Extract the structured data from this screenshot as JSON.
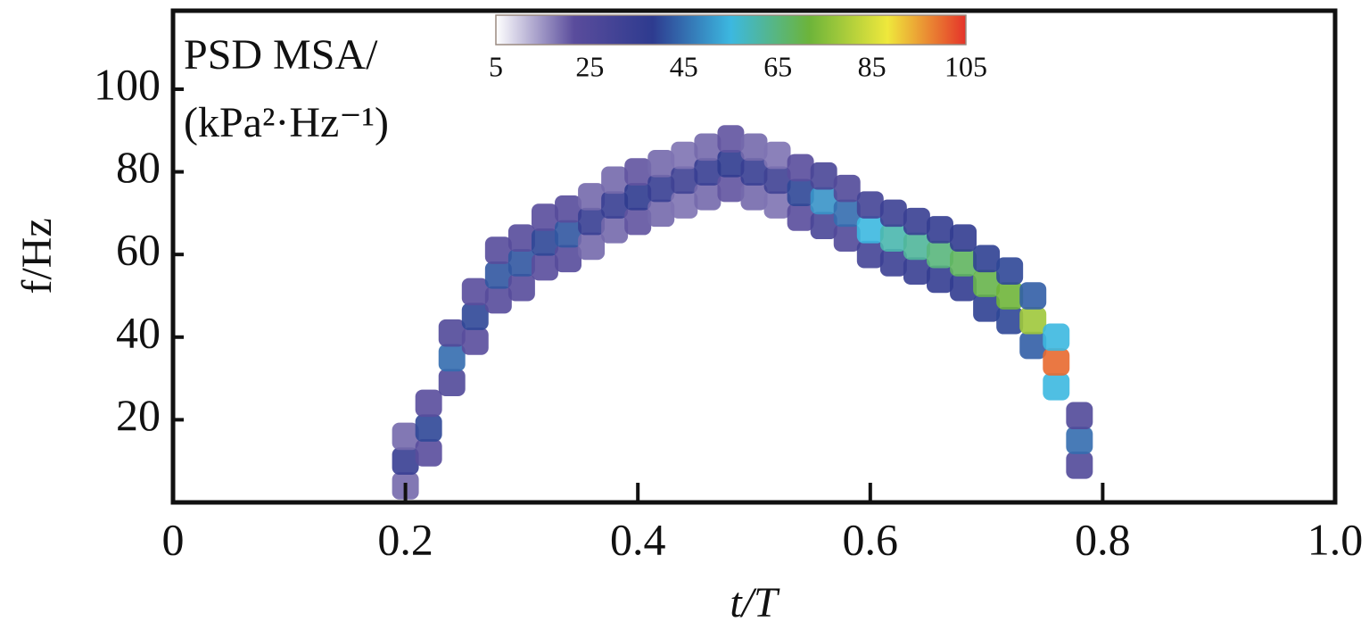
{
  "chart_data": {
    "type": "heatmap",
    "colorbar_title": [
      "PSD MSA/",
      "(kPa²·Hz⁻¹)"
    ],
    "xlabel": "t/T",
    "ylabel": "f/Hz",
    "xlim": [
      0,
      1
    ],
    "ylim": [
      0,
      119
    ],
    "xticks": [
      0,
      0.2,
      0.4,
      0.6,
      0.8,
      {
        "value": 1,
        "label": "1.0"
      }
    ],
    "yticks": [
      20,
      40,
      60,
      80,
      100
    ],
    "zlim": [
      5,
      105
    ],
    "zticks": [
      5,
      25,
      45,
      65,
      85,
      105
    ],
    "colorscale": [
      "#ffffff",
      "#5a4c9c",
      "#2e3b8f",
      "#3cb8e0",
      "#6cb43a",
      "#efe83c",
      "#e5332a"
    ],
    "x": [
      0.2,
      0.2,
      0.2,
      0.22,
      0.22,
      0.22,
      0.24,
      0.24,
      0.24,
      0.26,
      0.26,
      0.26,
      0.28,
      0.28,
      0.28,
      0.3,
      0.3,
      0.3,
      0.32,
      0.32,
      0.32,
      0.34,
      0.34,
      0.34,
      0.36,
      0.36,
      0.36,
      0.38,
      0.38,
      0.38,
      0.4,
      0.4,
      0.4,
      0.42,
      0.42,
      0.42,
      0.44,
      0.44,
      0.44,
      0.46,
      0.46,
      0.46,
      0.48,
      0.48,
      0.48,
      0.5,
      0.5,
      0.5,
      0.52,
      0.52,
      0.52,
      0.54,
      0.54,
      0.54,
      0.56,
      0.56,
      0.56,
      0.58,
      0.58,
      0.58,
      0.6,
      0.6,
      0.6,
      0.62,
      0.62,
      0.62,
      0.64,
      0.64,
      0.64,
      0.66,
      0.66,
      0.66,
      0.68,
      0.68,
      0.68,
      0.7,
      0.7,
      0.7,
      0.72,
      0.72,
      0.72,
      0.74,
      0.74,
      0.74,
      0.76,
      0.76,
      0.76,
      0.78,
      0.78,
      0.78
    ],
    "y": [
      4,
      10,
      16,
      12,
      18,
      24,
      29,
      35,
      41,
      39,
      45,
      51,
      49,
      55,
      61,
      52,
      58,
      64,
      57,
      63,
      69,
      59,
      65,
      71,
      62,
      68,
      74,
      66,
      72,
      78,
      68,
      74,
      80,
      70,
      76,
      82,
      72,
      78,
      84,
      74,
      80,
      86,
      76,
      82,
      88,
      74,
      80,
      86,
      72,
      78,
      84,
      69,
      75,
      81,
      67,
      73,
      79,
      64,
      70,
      76,
      60,
      66,
      72,
      58,
      64,
      70,
      56,
      62,
      68,
      54,
      60,
      66,
      52,
      58,
      64,
      47,
      53,
      59,
      44,
      50,
      56,
      38,
      44,
      50,
      28,
      34,
      40,
      9,
      15,
      21
    ],
    "z": [
      19,
      35,
      19,
      22,
      40,
      22,
      25,
      45,
      25,
      22,
      40,
      22,
      23,
      42,
      23,
      23,
      42,
      23,
      22,
      40,
      22,
      23,
      42,
      23,
      19,
      35,
      19,
      19,
      35,
      19,
      21,
      38,
      21,
      19,
      35,
      19,
      18,
      32,
      18,
      19,
      35,
      19,
      21,
      38,
      21,
      19,
      35,
      19,
      18,
      32,
      18,
      22,
      40,
      22,
      28,
      50,
      28,
      25,
      45,
      25,
      30,
      55,
      30,
      33,
      60,
      33,
      34,
      62,
      34,
      36,
      65,
      36,
      37,
      68,
      37,
      39,
      70,
      39,
      40,
      72,
      40,
      43,
      78,
      43,
      55,
      100,
      55,
      25,
      45,
      25
    ]
  }
}
